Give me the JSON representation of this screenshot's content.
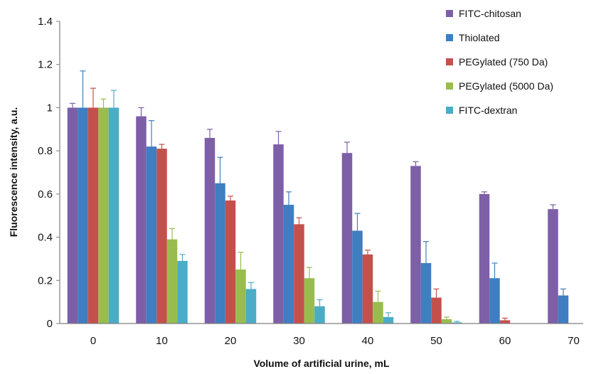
{
  "chart_data": {
    "type": "bar",
    "title": "",
    "xlabel": "Volume of artificial urine, mL",
    "ylabel": "Fluorescence intensity, a.u.",
    "categories": [
      "0",
      "10",
      "20",
      "30",
      "40",
      "50",
      "60",
      "70"
    ],
    "ylim": [
      0,
      1.4
    ],
    "yticks": [
      "0",
      "0.2",
      "0.4",
      "0.6",
      "0.8",
      "1",
      "1.2",
      "1.4"
    ],
    "grid": false,
    "legend_position": "top-right",
    "error_bars": "upper",
    "series": [
      {
        "name": "FITC-chitosan",
        "color": "#7d5fa8",
        "values": [
          1.0,
          0.96,
          0.86,
          0.83,
          0.79,
          0.73,
          0.6,
          0.53
        ],
        "errors": [
          0.02,
          0.04,
          0.04,
          0.06,
          0.05,
          0.02,
          0.01,
          0.02
        ]
      },
      {
        "name": "Thiolated",
        "color": "#3f7ec1",
        "values": [
          1.0,
          0.82,
          0.65,
          0.55,
          0.43,
          0.28,
          0.21,
          0.13
        ],
        "errors": [
          0.17,
          0.12,
          0.12,
          0.06,
          0.08,
          0.1,
          0.07,
          0.03
        ]
      },
      {
        "name": "PEGylated (750 Da)",
        "color": "#c4504c",
        "values": [
          1.0,
          0.81,
          0.57,
          0.46,
          0.32,
          0.12,
          0.015,
          null
        ],
        "errors": [
          0.09,
          0.02,
          0.02,
          0.03,
          0.02,
          0.04,
          0.01,
          null
        ]
      },
      {
        "name": "PEGylated (5000 Da)",
        "color": "#98bd4e",
        "values": [
          1.0,
          0.39,
          0.25,
          0.21,
          0.1,
          0.02,
          null,
          null
        ],
        "errors": [
          0.04,
          0.05,
          0.08,
          0.05,
          0.05,
          0.01,
          null,
          null
        ]
      },
      {
        "name": "FITC-dextran",
        "color": "#4bacc6",
        "values": [
          1.0,
          0.29,
          0.16,
          0.08,
          0.03,
          0.005,
          null,
          null
        ],
        "errors": [
          0.08,
          0.03,
          0.03,
          0.03,
          0.02,
          0.005,
          null,
          null
        ]
      }
    ]
  }
}
